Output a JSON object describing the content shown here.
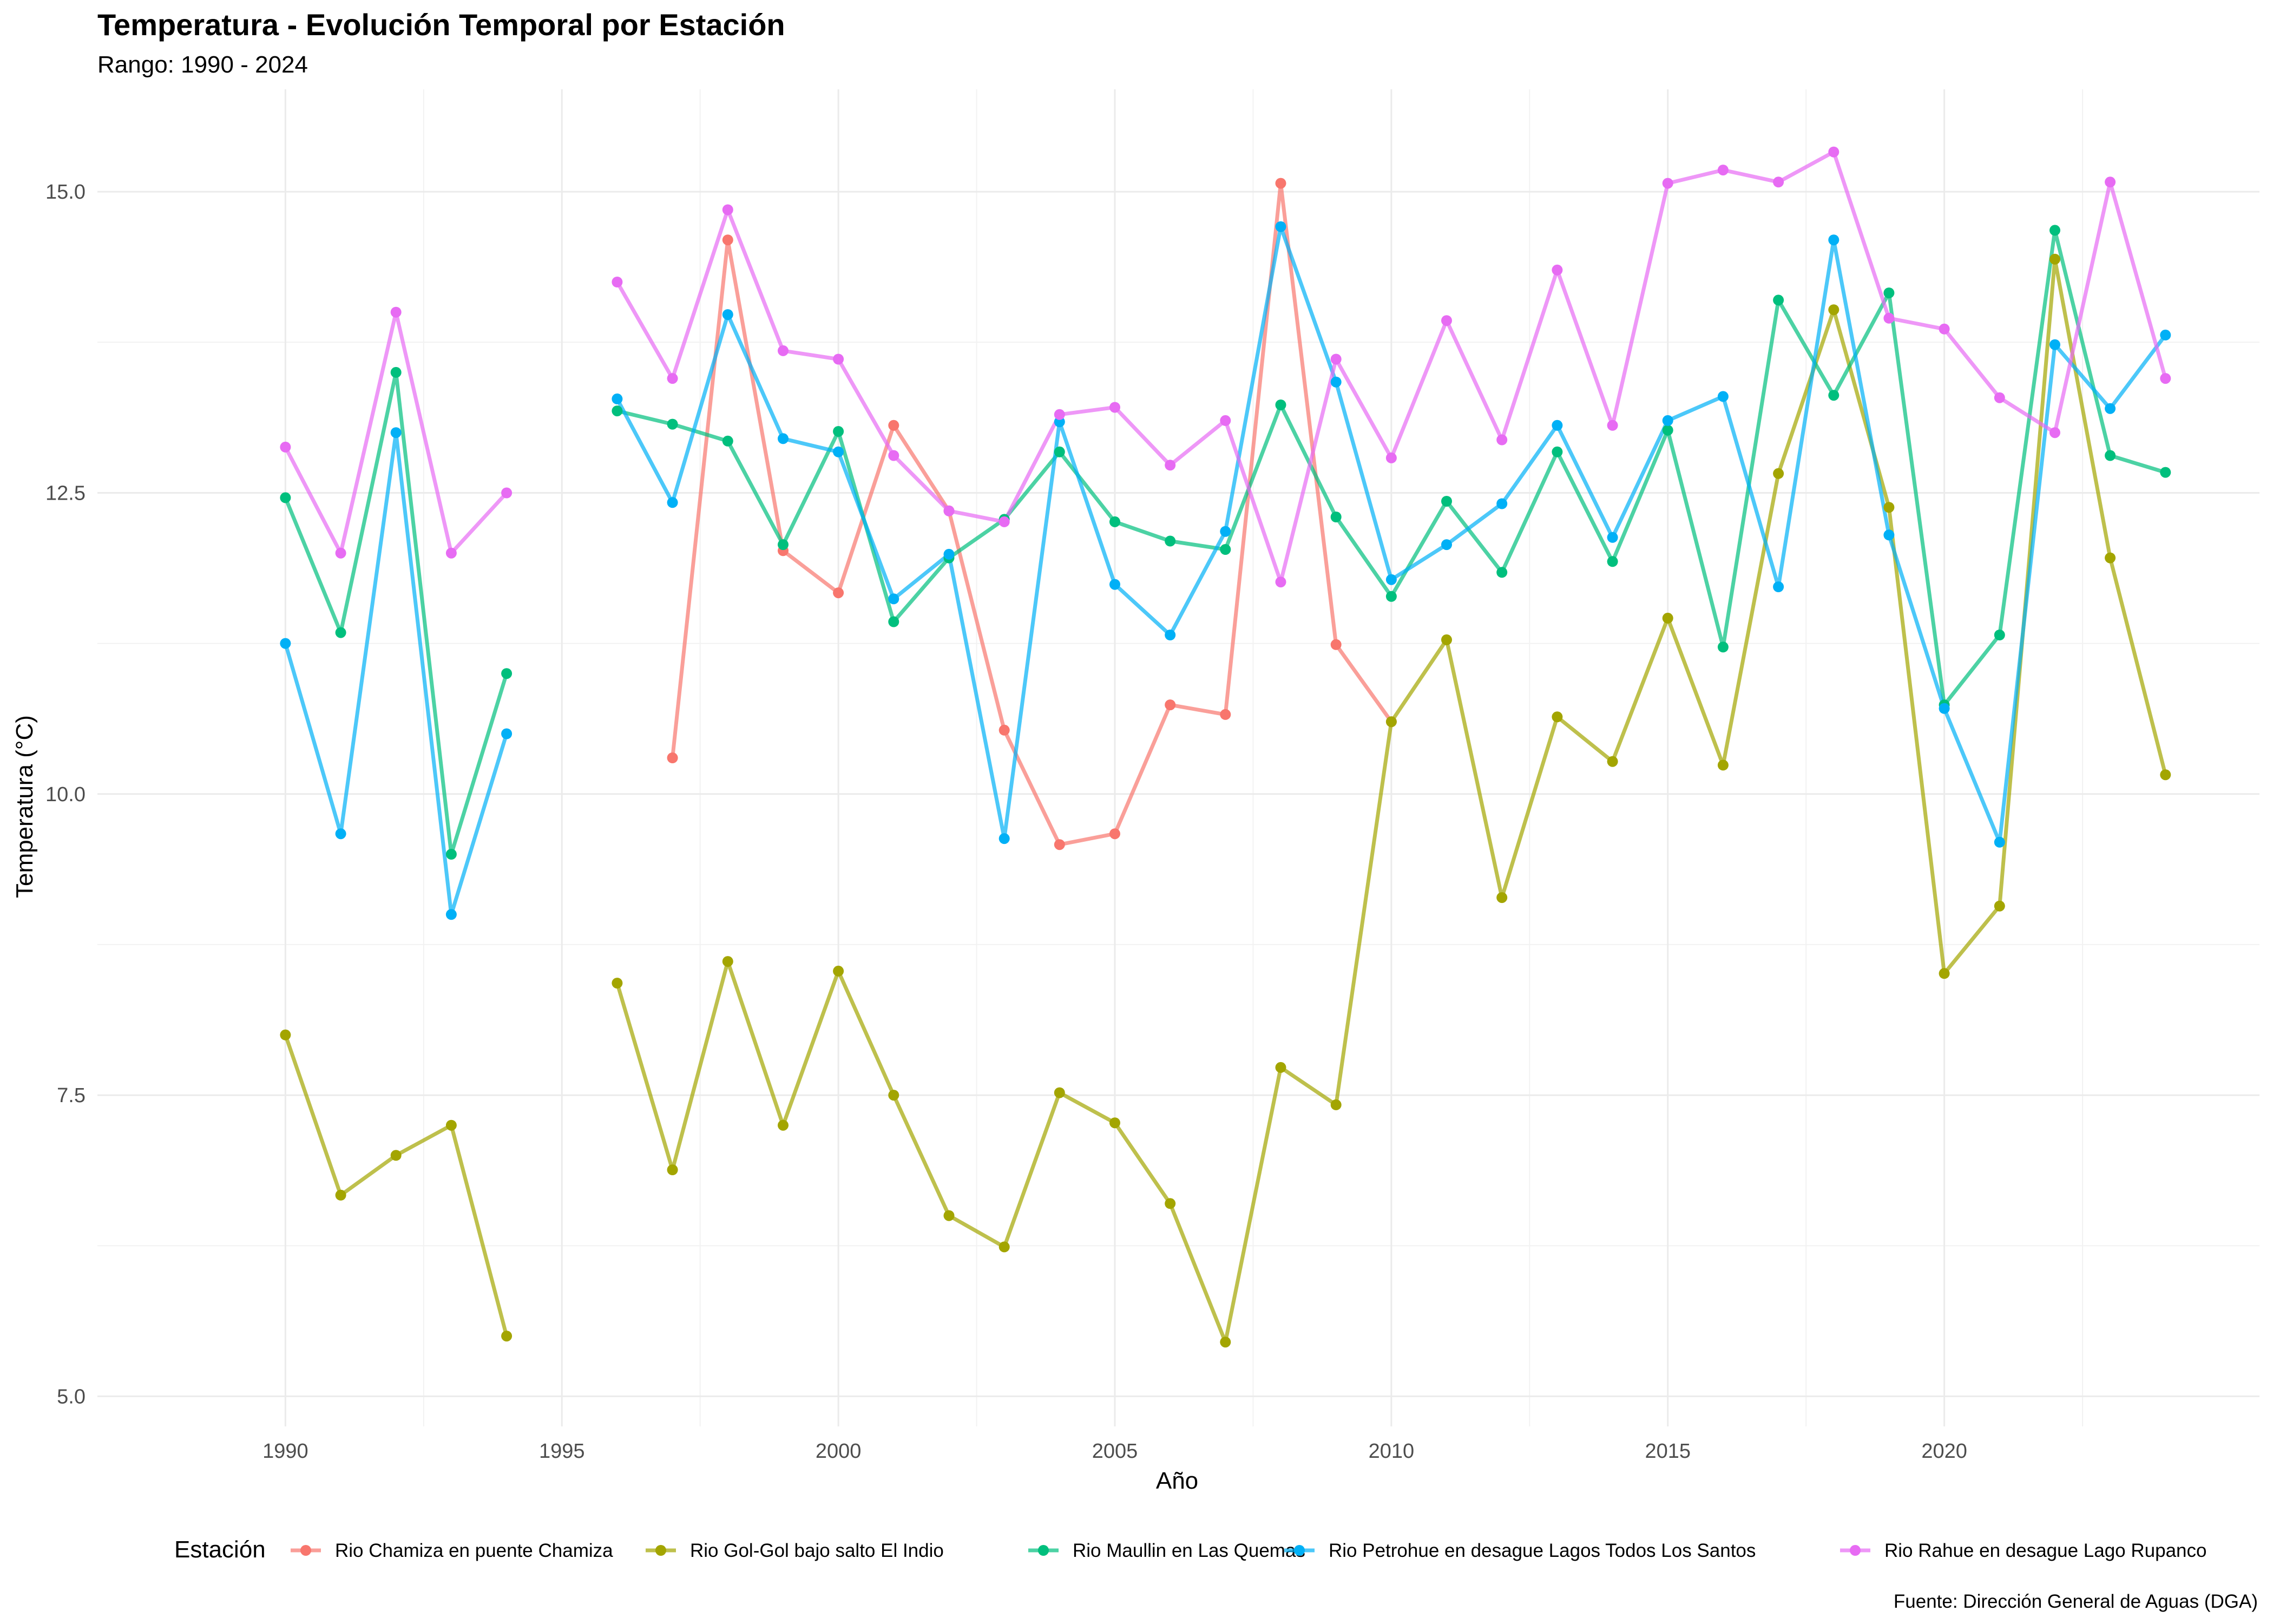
{
  "chart_data": {
    "type": "line",
    "title": "Temperatura - Evolución Temporal por Estación",
    "subtitle": "Rango: 1990 - 2024",
    "xlabel": "Año",
    "ylabel": "Temperatura (°C)",
    "caption": "Fuente: Dirección General de Aguas (DGA)",
    "legend_title": "Estación",
    "legend_position": "bottom",
    "grid": true,
    "xlim": [
      1986.6,
      2025.7
    ],
    "ylim": [
      4.75,
      15.85
    ],
    "x_ticks": [
      1990,
      1995,
      2000,
      2005,
      2010,
      2015,
      2020
    ],
    "x_tick_labels": [
      "1990",
      "1995",
      "2000",
      "2005",
      "2010",
      "2015",
      "2020"
    ],
    "y_ticks": [
      5.0,
      7.5,
      10.0,
      12.5,
      15.0
    ],
    "y_tick_labels": [
      "5.0",
      "7.5",
      "10.0",
      "12.5",
      "15.0"
    ],
    "series": [
      {
        "name": "Rio Chamiza en puente Chamiza",
        "color": "#F8766D",
        "points": [
          [
            1997,
            10.3
          ],
          [
            1998,
            14.6
          ],
          [
            1999,
            12.02
          ],
          [
            2000,
            11.67
          ],
          [
            2001,
            13.06
          ],
          [
            2002,
            12.35
          ],
          [
            2003,
            10.53
          ],
          [
            2004,
            9.58
          ],
          [
            2005,
            9.67
          ],
          [
            2006,
            10.74
          ],
          [
            2007,
            10.66
          ],
          [
            2008,
            15.07
          ],
          [
            2009,
            11.24
          ],
          [
            2010,
            10.6
          ]
        ]
      },
      {
        "name": "Rio Gol-Gol bajo salto El Indio",
        "color": "#A3A500",
        "points": [
          [
            1990,
            8.0
          ],
          [
            1991,
            6.67
          ],
          [
            1992,
            7.0
          ],
          [
            1993,
            7.25
          ],
          [
            1994,
            5.5
          ],
          [
            1996,
            8.43
          ],
          [
            1997,
            6.88
          ],
          [
            1998,
            8.61
          ],
          [
            1999,
            7.25
          ],
          [
            2000,
            8.53
          ],
          [
            2001,
            7.5
          ],
          [
            2002,
            6.5
          ],
          [
            2003,
            6.24
          ],
          [
            2004,
            7.52
          ],
          [
            2005,
            7.27
          ],
          [
            2006,
            6.6
          ],
          [
            2007,
            5.45
          ],
          [
            2008,
            7.73
          ],
          [
            2009,
            7.42
          ],
          [
            2010,
            10.6
          ],
          [
            2011,
            11.28
          ],
          [
            2012,
            9.14
          ],
          [
            2013,
            10.64
          ],
          [
            2014,
            10.27
          ],
          [
            2015,
            11.46
          ],
          [
            2016,
            10.24
          ],
          [
            2017,
            12.66
          ],
          [
            2018,
            14.02
          ],
          [
            2019,
            12.38
          ],
          [
            2020,
            8.51
          ],
          [
            2021,
            9.07
          ],
          [
            2022,
            14.44
          ],
          [
            2023,
            11.96
          ],
          [
            2024,
            10.16
          ]
        ]
      },
      {
        "name": "Rio Maullin en Las Quemas",
        "color": "#00BF7D",
        "points": [
          [
            1990,
            12.46
          ],
          [
            1991,
            11.34
          ],
          [
            1992,
            13.5
          ],
          [
            1993,
            9.5
          ],
          [
            1994,
            11.0
          ],
          [
            1996,
            13.18
          ],
          [
            1997,
            13.07
          ],
          [
            1998,
            12.93
          ],
          [
            1999,
            12.07
          ],
          [
            2000,
            13.01
          ],
          [
            2001,
            11.43
          ],
          [
            2002,
            11.96
          ],
          [
            2003,
            12.28
          ],
          [
            2004,
            12.84
          ],
          [
            2005,
            12.26
          ],
          [
            2006,
            12.1
          ],
          [
            2007,
            12.03
          ],
          [
            2008,
            13.23
          ],
          [
            2009,
            12.3
          ],
          [
            2010,
            11.64
          ],
          [
            2011,
            12.43
          ],
          [
            2012,
            11.84
          ],
          [
            2013,
            12.84
          ],
          [
            2014,
            11.93
          ],
          [
            2015,
            13.02
          ],
          [
            2016,
            11.22
          ],
          [
            2017,
            14.1
          ],
          [
            2018,
            13.31
          ],
          [
            2019,
            14.16
          ],
          [
            2020,
            10.74
          ],
          [
            2021,
            11.32
          ],
          [
            2022,
            14.68
          ],
          [
            2023,
            12.81
          ],
          [
            2024,
            12.67
          ]
        ]
      },
      {
        "name": "Rio Petrohue en desague Lagos Todos Los Santos",
        "color": "#00B0F6",
        "points": [
          [
            1990,
            11.25
          ],
          [
            1991,
            9.67
          ],
          [
            1992,
            13.0
          ],
          [
            1993,
            9.0
          ],
          [
            1994,
            10.5
          ],
          [
            1996,
            13.28
          ],
          [
            1997,
            12.42
          ],
          [
            1998,
            13.98
          ],
          [
            1999,
            12.95
          ],
          [
            2000,
            12.84
          ],
          [
            2001,
            11.62
          ],
          [
            2002,
            11.99
          ],
          [
            2003,
            9.63
          ],
          [
            2004,
            13.09
          ],
          [
            2005,
            11.74
          ],
          [
            2006,
            11.32
          ],
          [
            2007,
            12.18
          ],
          [
            2008,
            14.71
          ],
          [
            2009,
            13.42
          ],
          [
            2010,
            11.78
          ],
          [
            2011,
            12.07
          ],
          [
            2012,
            12.41
          ],
          [
            2013,
            13.06
          ],
          [
            2014,
            12.13
          ],
          [
            2015,
            13.1
          ],
          [
            2016,
            13.3
          ],
          [
            2017,
            11.72
          ],
          [
            2018,
            14.6
          ],
          [
            2019,
            12.15
          ],
          [
            2020,
            10.71
          ],
          [
            2021,
            9.6
          ],
          [
            2022,
            13.73
          ],
          [
            2023,
            13.2
          ],
          [
            2024,
            13.81
          ]
        ]
      },
      {
        "name": "Rio Rahue en desague Lago Rupanco",
        "color": "#E76BF3",
        "points": [
          [
            1990,
            12.88
          ],
          [
            1991,
            12.0
          ],
          [
            1992,
            14.0
          ],
          [
            1993,
            12.0
          ],
          [
            1994,
            12.5
          ],
          [
            1996,
            14.25
          ],
          [
            1997,
            13.45
          ],
          [
            1998,
            14.85
          ],
          [
            1999,
            13.68
          ],
          [
            2000,
            13.61
          ],
          [
            2001,
            12.81
          ],
          [
            2002,
            12.35
          ],
          [
            2003,
            12.26
          ],
          [
            2004,
            13.15
          ],
          [
            2005,
            13.21
          ],
          [
            2006,
            12.73
          ],
          [
            2007,
            13.1
          ],
          [
            2008,
            11.76
          ],
          [
            2009,
            13.61
          ],
          [
            2010,
            12.79
          ],
          [
            2011,
            13.93
          ],
          [
            2012,
            12.94
          ],
          [
            2013,
            14.35
          ],
          [
            2014,
            13.06
          ],
          [
            2015,
            15.07
          ],
          [
            2016,
            15.18
          ],
          [
            2017,
            15.08
          ],
          [
            2018,
            15.33
          ],
          [
            2019,
            13.95
          ],
          [
            2020,
            13.86
          ],
          [
            2021,
            13.29
          ],
          [
            2022,
            13.0
          ],
          [
            2023,
            15.08
          ],
          [
            2024,
            13.45
          ]
        ]
      }
    ]
  }
}
